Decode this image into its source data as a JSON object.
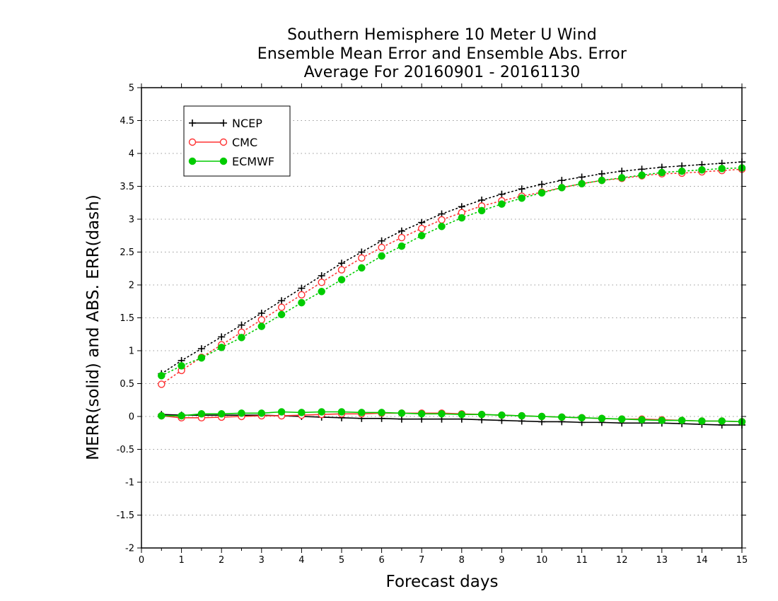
{
  "chart_data": {
    "type": "line",
    "title": [
      "Southern Hemisphere 10 Meter U Wind",
      "Ensemble Mean Error and Ensemble Abs. Error",
      "Average For 20160901 - 20161130"
    ],
    "xlabel": "Forecast days",
    "ylabel": "MERR(solid) and ABS. ERR(dash)",
    "xlim": [
      0,
      15
    ],
    "ylim": [
      -2,
      5
    ],
    "xticks": [
      0,
      1,
      2,
      3,
      4,
      5,
      6,
      7,
      8,
      9,
      10,
      11,
      12,
      13,
      14,
      15
    ],
    "yticks": [
      -2,
      -1.5,
      -1,
      -0.5,
      0,
      0.5,
      1,
      1.5,
      2,
      2.5,
      3,
      3.5,
      4,
      4.5,
      5
    ],
    "ytick_labels": [
      "-2",
      "-1.5",
      "-1",
      "-0.5",
      "0",
      "0.5",
      "1",
      "1.5",
      "2",
      "2.5",
      "3",
      "3.5",
      "4",
      "4.5",
      "5"
    ],
    "xtick_labels": [
      "0",
      "1",
      "2",
      "3",
      "4",
      "5",
      "6",
      "7",
      "8",
      "9",
      "10",
      "11",
      "12",
      "13",
      "14",
      "15"
    ],
    "grid": "horizontal dotted",
    "legend_position": "top-left",
    "x": [
      0.5,
      1,
      1.5,
      2,
      2.5,
      3,
      3.5,
      4,
      4.5,
      5,
      5.5,
      6,
      6.5,
      7,
      7.5,
      8,
      8.5,
      9,
      9.5,
      10,
      10.5,
      11,
      11.5,
      12,
      12.5,
      13,
      13.5,
      14,
      14.5,
      15
    ],
    "series": [
      {
        "name": "NCEP",
        "color": "#000000",
        "marker": "plus",
        "abs_error": [
          0.65,
          0.85,
          1.03,
          1.21,
          1.39,
          1.57,
          1.76,
          1.95,
          2.14,
          2.33,
          2.5,
          2.67,
          2.82,
          2.95,
          3.08,
          3.19,
          3.29,
          3.38,
          3.46,
          3.53,
          3.59,
          3.64,
          3.69,
          3.73,
          3.76,
          3.79,
          3.81,
          3.83,
          3.85,
          3.87
        ],
        "mean_error": [
          0.03,
          0.02,
          0.02,
          0.02,
          0.02,
          0.02,
          0.01,
          0.0,
          -0.01,
          -0.02,
          -0.03,
          -0.03,
          -0.04,
          -0.04,
          -0.04,
          -0.04,
          -0.05,
          -0.06,
          -0.07,
          -0.08,
          -0.08,
          -0.09,
          -0.09,
          -0.1,
          -0.1,
          -0.1,
          -0.11,
          -0.12,
          -0.13,
          -0.13
        ]
      },
      {
        "name": "CMC",
        "color": "#ff3333",
        "marker": "open-circle",
        "abs_error": [
          0.49,
          0.7,
          0.9,
          1.09,
          1.28,
          1.47,
          1.66,
          1.85,
          2.04,
          2.23,
          2.41,
          2.57,
          2.72,
          2.86,
          2.99,
          3.1,
          3.2,
          3.28,
          3.35,
          3.41,
          3.48,
          3.54,
          3.59,
          3.62,
          3.66,
          3.69,
          3.7,
          3.72,
          3.74,
          3.76
        ],
        "mean_error": [
          0.01,
          -0.02,
          -0.02,
          -0.01,
          0.0,
          0.01,
          0.01,
          0.02,
          0.03,
          0.04,
          0.04,
          0.05,
          0.05,
          0.05,
          0.05,
          0.04,
          0.03,
          0.02,
          0.01,
          0.0,
          -0.01,
          -0.02,
          -0.03,
          -0.04,
          -0.04,
          -0.05,
          -0.06,
          -0.07,
          -0.07,
          -0.08
        ]
      },
      {
        "name": "ECMWF",
        "color": "#00cc00",
        "marker": "filled-circle",
        "abs_error": [
          0.62,
          0.77,
          0.89,
          1.05,
          1.2,
          1.37,
          1.55,
          1.73,
          1.9,
          2.08,
          2.26,
          2.44,
          2.59,
          2.75,
          2.89,
          3.02,
          3.13,
          3.23,
          3.32,
          3.4,
          3.48,
          3.54,
          3.59,
          3.63,
          3.67,
          3.71,
          3.73,
          3.75,
          3.77,
          3.78
        ],
        "mean_error": [
          0.01,
          0.01,
          0.04,
          0.04,
          0.05,
          0.05,
          0.07,
          0.06,
          0.07,
          0.07,
          0.06,
          0.06,
          0.05,
          0.04,
          0.04,
          0.03,
          0.03,
          0.02,
          0.01,
          0.0,
          -0.01,
          -0.02,
          -0.03,
          -0.04,
          -0.05,
          -0.06,
          -0.06,
          -0.07,
          -0.07,
          -0.08
        ]
      }
    ]
  }
}
